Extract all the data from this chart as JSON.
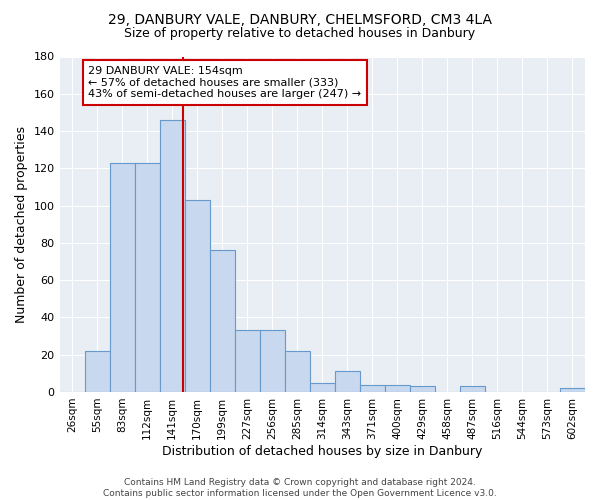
{
  "title1": "29, DANBURY VALE, DANBURY, CHELMSFORD, CM3 4LA",
  "title2": "Size of property relative to detached houses in Danbury",
  "xlabel": "Distribution of detached houses by size in Danbury",
  "ylabel": "Number of detached properties",
  "bin_labels": [
    "26sqm",
    "55sqm",
    "83sqm",
    "112sqm",
    "141sqm",
    "170sqm",
    "199sqm",
    "227sqm",
    "256sqm",
    "285sqm",
    "314sqm",
    "343sqm",
    "371sqm",
    "400sqm",
    "429sqm",
    "458sqm",
    "487sqm",
    "516sqm",
    "544sqm",
    "573sqm",
    "602sqm"
  ],
  "bar_values": [
    0,
    22,
    123,
    123,
    146,
    103,
    76,
    33,
    33,
    22,
    5,
    11,
    4,
    4,
    3,
    0,
    3,
    0,
    0,
    0,
    2
  ],
  "bar_color": "#c8d8ee",
  "bar_edge_color": "#6699cc",
  "annotation_text": "29 DANBURY VALE: 154sqm\n← 57% of detached houses are smaller (333)\n43% of semi-detached houses are larger (247) →",
  "annotation_box_color": "#ffffff",
  "annotation_box_edge_color": "#cc0000",
  "red_line_color": "#cc0000",
  "ylim": [
    0,
    180
  ],
  "yticks": [
    0,
    20,
    40,
    60,
    80,
    100,
    120,
    140,
    160,
    180
  ],
  "footer_text": "Contains HM Land Registry data © Crown copyright and database right 2024.\nContains public sector information licensed under the Open Government Licence v3.0.",
  "bg_color": "#ffffff",
  "plot_bg_color": "#e8eef4",
  "grid_color": "#ffffff"
}
